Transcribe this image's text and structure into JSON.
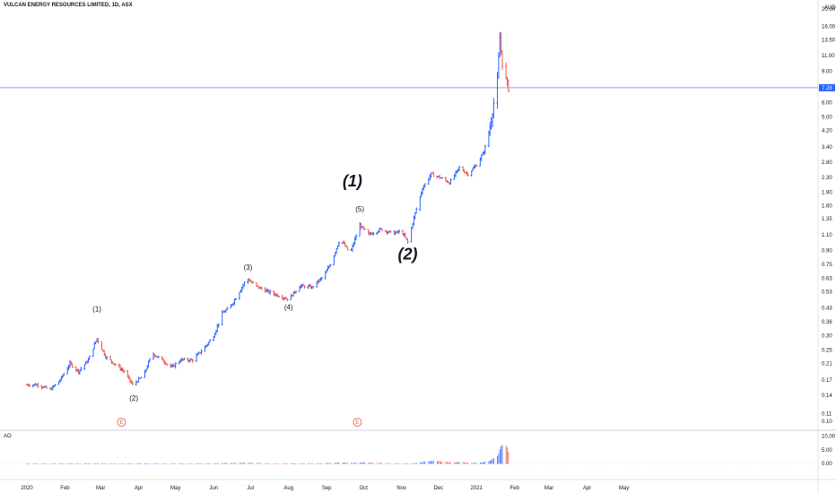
{
  "header": {
    "title": "VULCAN ENERGY RESOURCES LIMITED, 1D, ASX"
  },
  "chart_data": {
    "type": "bar",
    "title": "VULCAN ENERGY RESOURCES LIMITED, 1D, ASX",
    "currency": "AUD",
    "scale": "log",
    "y_ticks": [
      "20.00",
      "16.00",
      "13.50",
      "11.00",
      "9.00",
      "7.28",
      "6.00",
      "5.00",
      "4.20",
      "3.40",
      "2.80",
      "2.30",
      "1.90",
      "1.60",
      "1.35",
      "1.10",
      "0.90",
      "0.75",
      "0.63",
      "0.53",
      "0.43",
      "0.36",
      "0.30",
      "0.25",
      "0.21",
      "0.17",
      "0.14",
      "0.11",
      "0.10"
    ],
    "x_ticks": [
      "2020",
      "Feb",
      "Mar",
      "Apr",
      "May",
      "Jun",
      "Jul",
      "Aug",
      "Sep",
      "Oct",
      "Nov",
      "Dec",
      "2021",
      "Feb",
      "Mar",
      "Apr",
      "May"
    ],
    "last_price": 7.28,
    "last_price_label": "7.28",
    "colors": {
      "up": "#2962ff",
      "down": "#ef5350",
      "price_line": "#9c9cf0"
    },
    "price_path": [
      [
        "2020-01-01",
        0.16
      ],
      [
        "2020-01-10",
        0.16
      ],
      [
        "2020-01-20",
        0.15
      ],
      [
        "2020-01-28",
        0.17
      ],
      [
        "2020-02-05",
        0.21
      ],
      [
        "2020-02-12",
        0.19
      ],
      [
        "2020-02-20",
        0.22
      ],
      [
        "2020-02-27",
        0.29
      ],
      [
        "2020-03-05",
        0.23
      ],
      [
        "2020-03-12",
        0.21
      ],
      [
        "2020-03-20",
        0.19
      ],
      [
        "2020-03-27",
        0.16
      ],
      [
        "2020-04-05",
        0.18
      ],
      [
        "2020-04-12",
        0.24
      ],
      [
        "2020-04-20",
        0.22
      ],
      [
        "2020-04-28",
        0.2
      ],
      [
        "2020-05-05",
        0.22
      ],
      [
        "2020-05-15",
        0.22
      ],
      [
        "2020-05-25",
        0.26
      ],
      [
        "2020-06-01",
        0.3
      ],
      [
        "2020-06-08",
        0.4
      ],
      [
        "2020-06-15",
        0.44
      ],
      [
        "2020-06-22",
        0.53
      ],
      [
        "2020-06-28",
        0.63
      ],
      [
        "2020-07-05",
        0.57
      ],
      [
        "2020-07-15",
        0.53
      ],
      [
        "2020-07-25",
        0.5
      ],
      [
        "2020-08-01",
        0.48
      ],
      [
        "2020-08-10",
        0.57
      ],
      [
        "2020-08-20",
        0.56
      ],
      [
        "2020-08-30",
        0.65
      ],
      [
        "2020-09-05",
        0.78
      ],
      [
        "2020-09-12",
        1.05
      ],
      [
        "2020-09-20",
        0.86
      ],
      [
        "2020-09-28",
        1.25
      ],
      [
        "2020-10-05",
        1.1
      ],
      [
        "2020-10-15",
        1.18
      ],
      [
        "2020-10-25",
        1.12
      ],
      [
        "2020-11-01",
        1.15
      ],
      [
        "2020-11-06",
        1.0
      ],
      [
        "2020-11-12",
        1.45
      ],
      [
        "2020-11-18",
        2.0
      ],
      [
        "2020-11-25",
        2.4
      ],
      [
        "2020-12-02",
        2.3
      ],
      [
        "2020-12-10",
        2.15
      ],
      [
        "2020-12-18",
        2.6
      ],
      [
        "2020-12-25",
        2.4
      ],
      [
        "2021-01-01",
        2.7
      ],
      [
        "2021-01-07",
        3.2
      ],
      [
        "2021-01-12",
        4.4
      ],
      [
        "2021-01-15",
        6.0
      ],
      [
        "2021-01-18",
        8.0
      ],
      [
        "2021-01-20",
        13.8
      ],
      [
        "2021-01-22",
        10.0
      ],
      [
        "2021-01-25",
        8.0
      ],
      [
        "2021-01-27",
        7.28
      ]
    ],
    "annotations": [
      {
        "label": "(1)",
        "date": "2020-02-27",
        "price": 0.41,
        "size": "small"
      },
      {
        "label": "(2)",
        "date": "2020-03-28",
        "price": 0.13,
        "size": "small"
      },
      {
        "label": "(3)",
        "date": "2020-06-29",
        "price": 0.7,
        "size": "small"
      },
      {
        "label": "(4)",
        "date": "2020-08-01",
        "price": 0.42,
        "size": "small"
      },
      {
        "label": "(5)",
        "date": "2020-09-28",
        "price": 1.48,
        "size": "small"
      },
      {
        "label": "(1)",
        "date": "2020-09-22",
        "price": 2.05,
        "size": "large"
      },
      {
        "label": "(2)",
        "date": "2020-11-06",
        "price": 0.8,
        "size": "large"
      }
    ],
    "events": [
      {
        "label": "E",
        "date": "2020-03-18"
      },
      {
        "label": "E",
        "date": "2020-09-26"
      }
    ],
    "indicator": {
      "name": "AO",
      "y_ticks": [
        "10.00",
        "5.00",
        "0.00"
      ]
    }
  }
}
